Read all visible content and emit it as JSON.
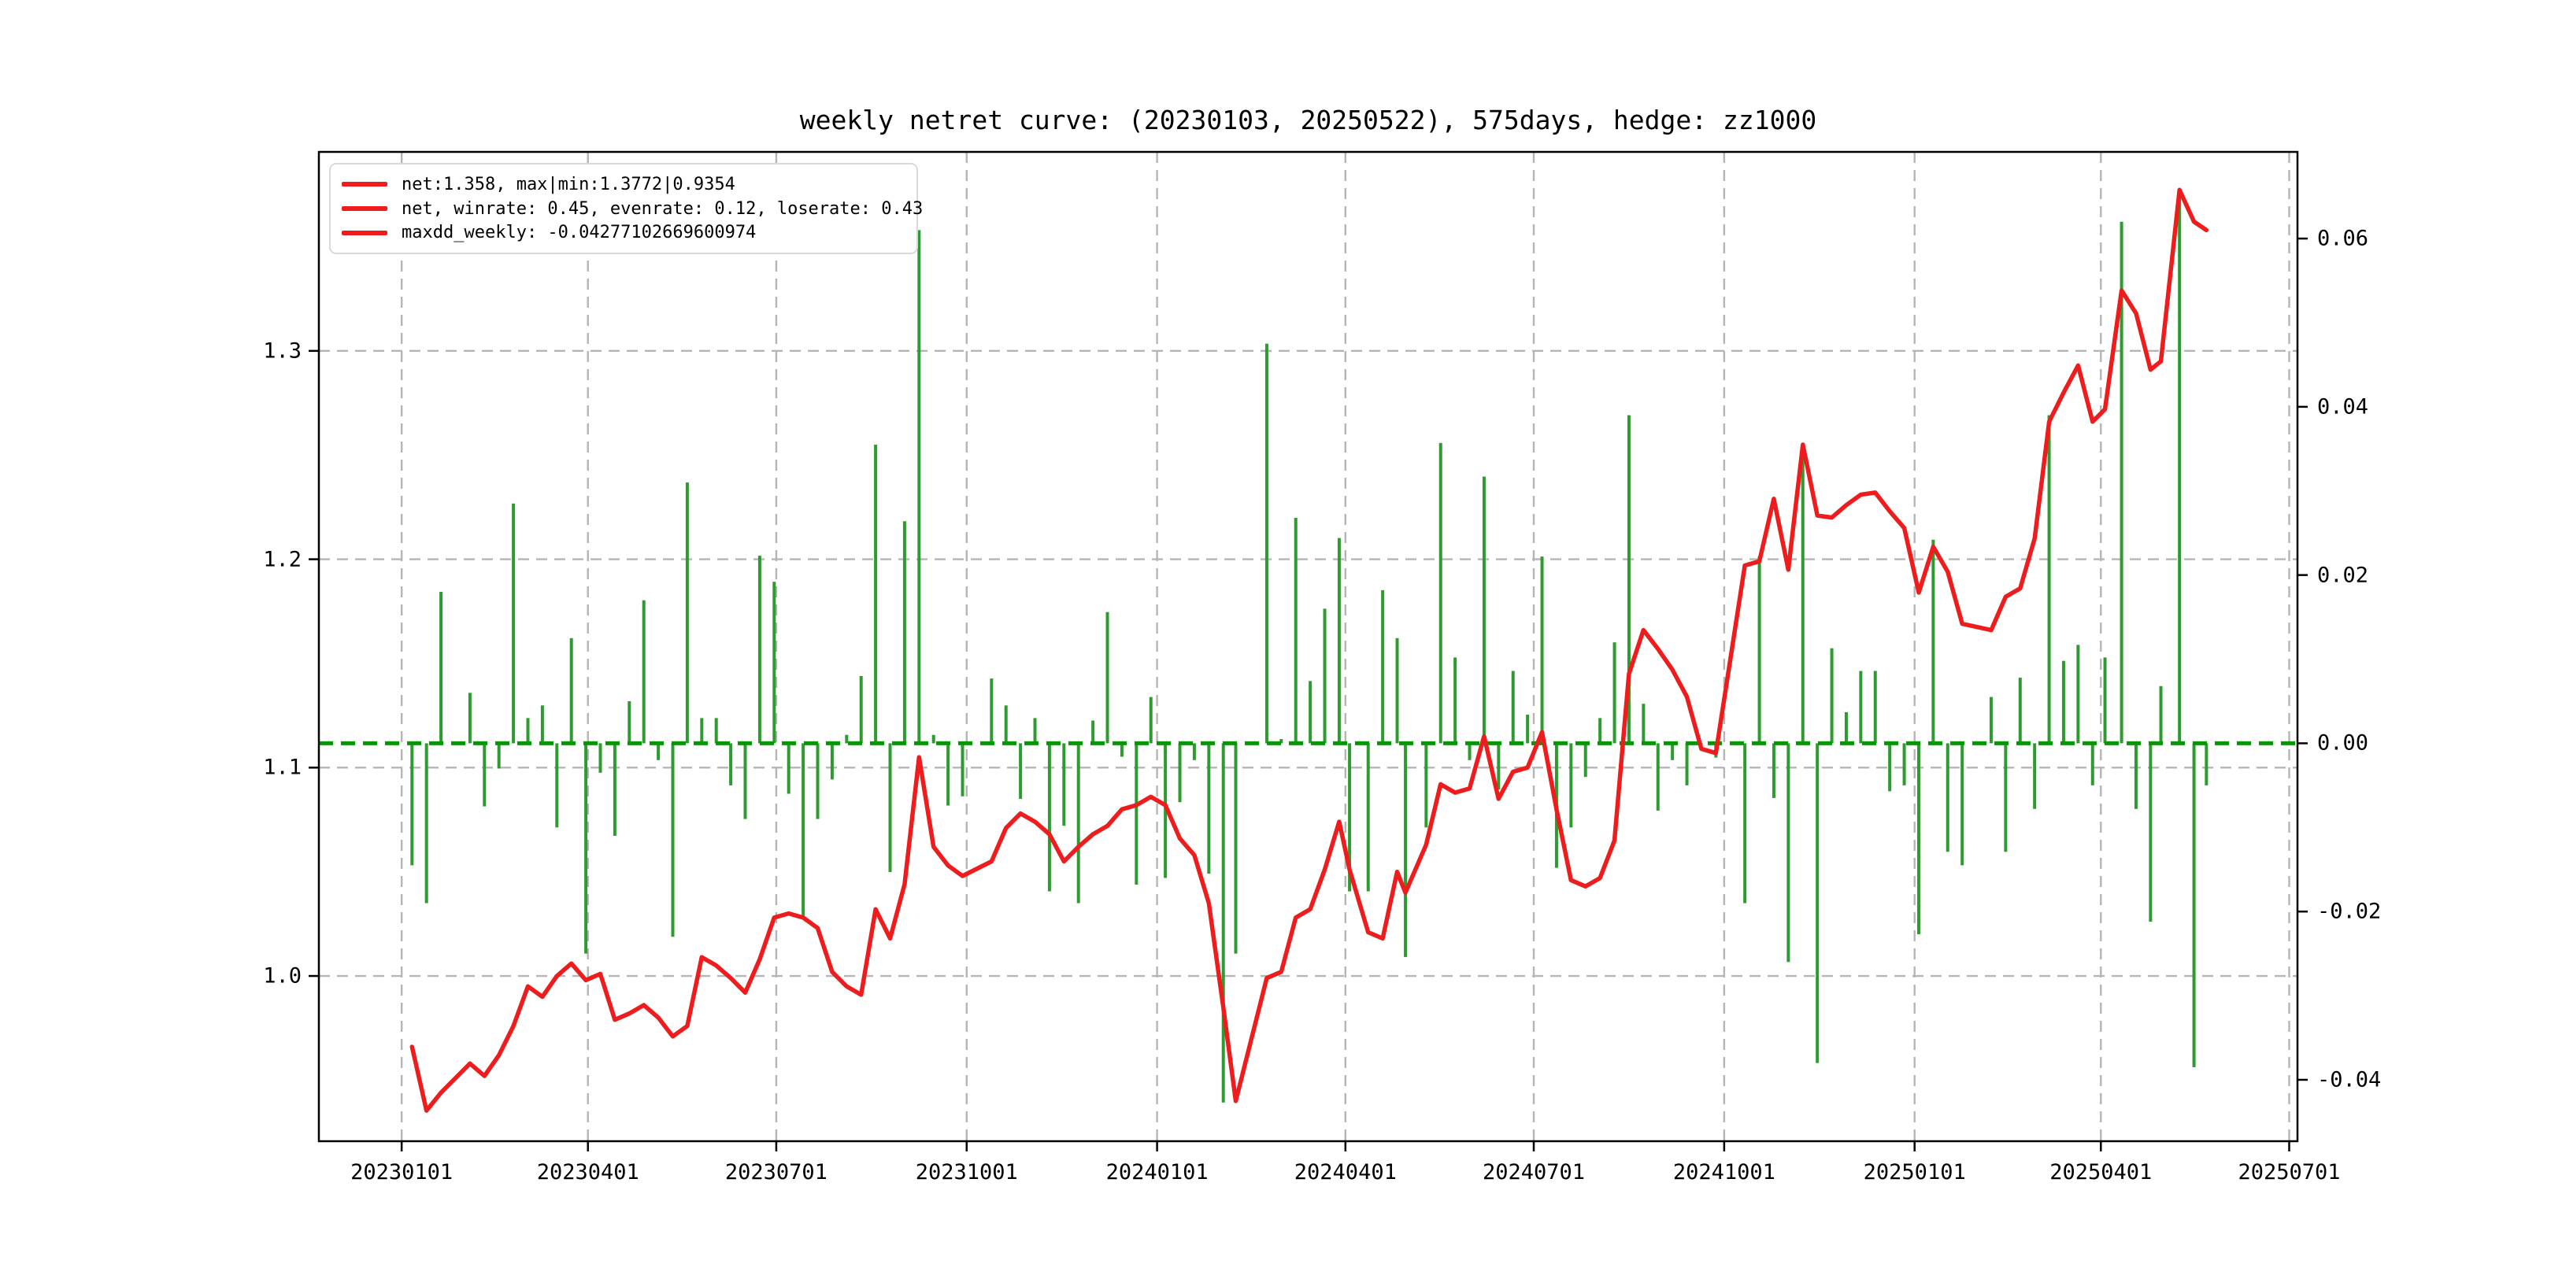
{
  "title": "weekly netret curve: (20230103, 20250522), 575days, hedge: zz1000",
  "legend": {
    "items": [
      {
        "label": "net:1.358, max|min:1.3772|0.9354",
        "color": "#ee1c1c"
      },
      {
        "label": "net, winrate: 0.45, evenrate: 0.12, loserate: 0.43",
        "color": "#ee1c1c"
      },
      {
        "label": "maxdd_weekly: -0.04277102669600974",
        "color": "#ee1c1c"
      }
    ]
  },
  "colors": {
    "net_line": "#ee1c1c",
    "return_bar": "#2e9b31",
    "zero_line": "#0a940a",
    "gridline": "#b5b5b5",
    "spine": "#000000",
    "background": "#ffffff"
  },
  "chart_data": {
    "type": "line+bar",
    "title": "weekly netret curve: (20230103, 20250522), 575days, hedge: zz1000",
    "grid": "dashed, on left-axis y ticks and x quarter ticks",
    "legend_position": "upper left",
    "x_axis": {
      "range": [
        "20221122",
        "20250705"
      ]
    },
    "left_axis": {
      "range": [
        0.9207,
        1.3955
      ],
      "series": "net curve (red line)"
    },
    "right_axis": {
      "range": [
        -0.0473,
        0.0703
      ],
      "series": "weekly return bars (green)"
    },
    "zero_line": {
      "value": 0.0,
      "axis": "right"
    },
    "x_tick_labels": [
      "20230101",
      "20230401",
      "20230701",
      "20231001",
      "20240101",
      "20240401",
      "20240701",
      "20241001",
      "20250101",
      "20250401",
      "20250701"
    ],
    "left_tick_labels": [
      "1.0",
      "1.1",
      "1.2",
      "1.3"
    ],
    "right_tick_labels": [
      "-0.04",
      "-0.02",
      "0.00",
      "0.02",
      "0.04",
      "0.06"
    ],
    "dates": [
      "20230106",
      "20230113",
      "20230120",
      "20230203",
      "20230210",
      "20230217",
      "20230224",
      "20230303",
      "20230310",
      "20230317",
      "20230324",
      "20230331",
      "20230407",
      "20230414",
      "20230421",
      "20230428",
      "20230505",
      "20230512",
      "20230519",
      "20230526",
      "20230602",
      "20230609",
      "20230616",
      "20230623",
      "20230630",
      "20230707",
      "20230714",
      "20230721",
      "20230728",
      "20230804",
      "20230811",
      "20230818",
      "20230825",
      "20230901",
      "20230908",
      "20230915",
      "20230922",
      "20230929",
      "20231013",
      "20231020",
      "20231027",
      "20231103",
      "20231110",
      "20231117",
      "20231124",
      "20231201",
      "20231208",
      "20231215",
      "20231222",
      "20231229",
      "20240105",
      "20240112",
      "20240119",
      "20240126",
      "20240202",
      "20240208",
      "20240223",
      "20240301",
      "20240308",
      "20240315",
      "20240322",
      "20240329",
      "20240403",
      "20240412",
      "20240419",
      "20240426",
      "20240430",
      "20240510",
      "20240517",
      "20240524",
      "20240531",
      "20240607",
      "20240614",
      "20240621",
      "20240628",
      "20240705",
      "20240712",
      "20240719",
      "20240726",
      "20240802",
      "20240809",
      "20240816",
      "20240823",
      "20240830",
      "20240906",
      "20240913",
      "20240920",
      "20240927",
      "20241011",
      "20241018",
      "20241025",
      "20241101",
      "20241108",
      "20241115",
      "20241122",
      "20241129",
      "20241206",
      "20241213",
      "20241220",
      "20241227",
      "20250103",
      "20250110",
      "20250117",
      "20250124",
      "20250207",
      "20250214",
      "20250221",
      "20250228",
      "20250307",
      "20250314",
      "20250321",
      "20250328",
      "20250403",
      "20250411",
      "20250418",
      "20250425",
      "20250430",
      "20250509",
      "20250516",
      "20250522"
    ],
    "series": [
      {
        "name": "net",
        "type": "line",
        "axis": "left",
        "values": [
          0.966,
          0.9354,
          0.944,
          0.958,
          0.952,
          0.962,
          0.976,
          0.995,
          0.99,
          1.0,
          1.006,
          0.998,
          1.001,
          0.979,
          0.982,
          0.986,
          0.98,
          0.971,
          0.976,
          1.009,
          1.005,
          0.999,
          0.992,
          1.008,
          1.028,
          1.03,
          1.028,
          1.023,
          1.002,
          0.995,
          0.991,
          1.032,
          1.018,
          1.044,
          1.105,
          1.062,
          1.053,
          1.048,
          1.055,
          1.071,
          1.078,
          1.074,
          1.068,
          1.055,
          1.062,
          1.068,
          1.072,
          1.08,
          1.082,
          1.086,
          1.082,
          1.066,
          1.058,
          1.035,
          0.985,
          0.94,
          0.999,
          1.002,
          1.028,
          1.032,
          1.051,
          1.074,
          1.051,
          1.021,
          1.018,
          1.05,
          1.04,
          1.063,
          1.092,
          1.088,
          1.09,
          1.115,
          1.085,
          1.098,
          1.1,
          1.117,
          1.08,
          1.046,
          1.043,
          1.047,
          1.065,
          1.145,
          1.166,
          1.157,
          1.147,
          1.134,
          1.109,
          1.107,
          1.197,
          1.199,
          1.229,
          1.195,
          1.255,
          1.221,
          1.22,
          1.226,
          1.231,
          1.232,
          1.223,
          1.215,
          1.184,
          1.206,
          1.194,
          1.169,
          1.166,
          1.182,
          1.186,
          1.21,
          1.266,
          1.28,
          1.293,
          1.266,
          1.272,
          1.329,
          1.318,
          1.291,
          1.295,
          1.3772,
          1.362,
          1.358
        ]
      },
      {
        "name": "weekly_return",
        "type": "bar",
        "axis": "right",
        "values": [
          -0.0145,
          -0.019,
          0.018,
          0.006,
          -0.0075,
          -0.003,
          0.0285,
          0.003,
          0.0045,
          -0.01,
          0.0125,
          -0.025,
          -0.0035,
          -0.011,
          0.005,
          0.017,
          -0.002,
          -0.023,
          0.031,
          0.003,
          0.003,
          -0.005,
          -0.009,
          0.0223,
          0.0192,
          -0.006,
          -0.0205,
          -0.009,
          -0.0043,
          0.001,
          0.008,
          0.0355,
          -0.0153,
          0.0264,
          0.061,
          0.001,
          -0.0074,
          -0.0063,
          0.0077,
          0.0045,
          -0.0066,
          0.003,
          -0.0176,
          -0.0098,
          -0.019,
          0.0027,
          0.0156,
          -0.0016,
          -0.0168,
          0.0055,
          -0.016,
          -0.007,
          -0.002,
          -0.0155,
          -0.0427,
          -0.025,
          0.0475,
          0.0005,
          0.0268,
          0.0074,
          0.016,
          0.0244,
          -0.0176,
          -0.0176,
          0.0182,
          0.0125,
          -0.0254,
          -0.01,
          0.0357,
          0.0102,
          -0.002,
          0.0317,
          -0.0055,
          0.0086,
          0.0034,
          0.0222,
          -0.0148,
          -0.01,
          -0.004,
          0.003,
          0.012,
          0.039,
          0.0047,
          -0.008,
          -0.002,
          -0.005,
          0.0,
          -0.0017,
          -0.019,
          0.0222,
          -0.0065,
          -0.026,
          0.0357,
          -0.038,
          0.0113,
          0.0037,
          0.0086,
          0.0086,
          -0.0057,
          -0.005,
          -0.0227,
          0.0242,
          -0.0129,
          -0.0145,
          0.0055,
          -0.0129,
          0.0078,
          -0.0078,
          0.039,
          0.0098,
          0.0117,
          -0.005,
          0.0102,
          0.062,
          -0.0078,
          -0.0212,
          0.0068,
          0.066,
          -0.0385,
          -0.005
        ]
      }
    ]
  }
}
